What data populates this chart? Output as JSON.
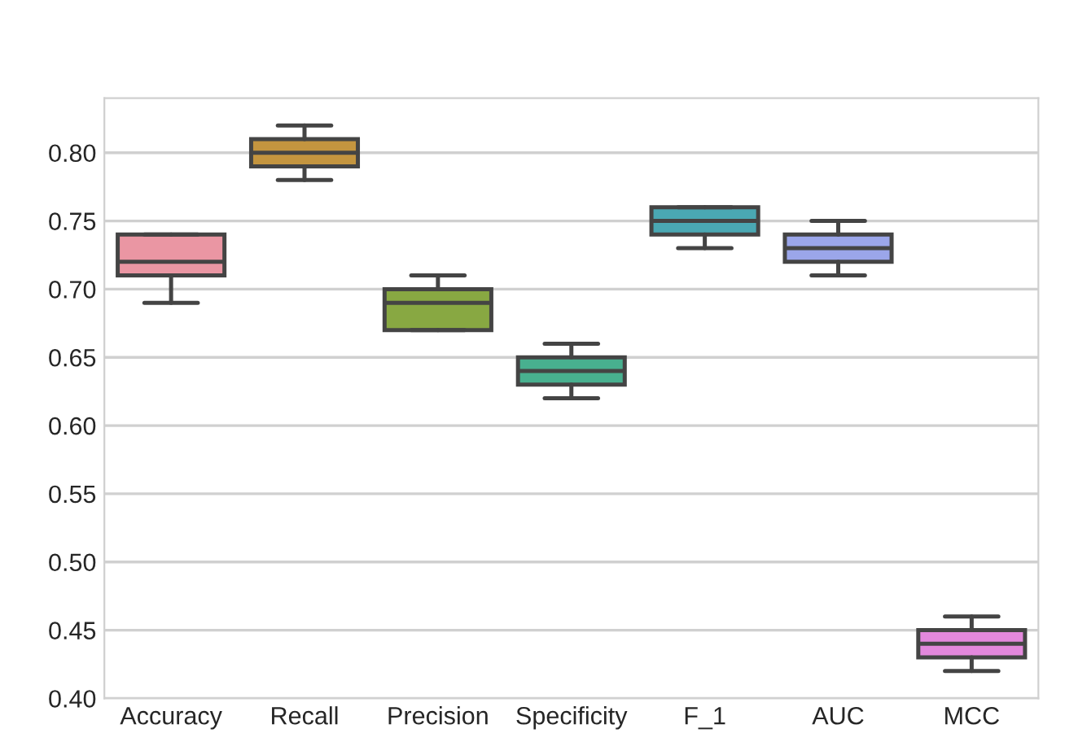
{
  "chart_data": {
    "type": "box",
    "categories": [
      "Accuracy",
      "Recall",
      "Precision",
      "Specificity",
      "F_1",
      "AUC",
      "MCC"
    ],
    "boxes": [
      {
        "low": 0.69,
        "q1": 0.71,
        "median": 0.72,
        "q3": 0.74,
        "high": 0.74
      },
      {
        "low": 0.78,
        "q1": 0.79,
        "median": 0.8,
        "q3": 0.81,
        "high": 0.82
      },
      {
        "low": 0.67,
        "q1": 0.67,
        "median": 0.69,
        "q3": 0.7,
        "high": 0.71
      },
      {
        "low": 0.62,
        "q1": 0.63,
        "median": 0.64,
        "q3": 0.65,
        "high": 0.66
      },
      {
        "low": 0.73,
        "q1": 0.74,
        "median": 0.75,
        "q3": 0.76,
        "high": 0.76
      },
      {
        "low": 0.71,
        "q1": 0.72,
        "median": 0.73,
        "q3": 0.74,
        "high": 0.75
      },
      {
        "low": 0.42,
        "q1": 0.43,
        "median": 0.44,
        "q3": 0.45,
        "high": 0.46
      }
    ],
    "colors": [
      "#ea96a3",
      "#c4953f",
      "#88a842",
      "#48b08f",
      "#4aa8b3",
      "#9ba6ea",
      "#e388dc"
    ],
    "ylim": [
      0.4,
      0.84
    ],
    "yticks": [
      {
        "value": 0.4,
        "label": "0.40"
      },
      {
        "value": 0.45,
        "label": "0.45"
      },
      {
        "value": 0.5,
        "label": "0.50"
      },
      {
        "value": 0.55,
        "label": "0.55"
      },
      {
        "value": 0.6,
        "label": "0.60"
      },
      {
        "value": 0.65,
        "label": "0.65"
      },
      {
        "value": 0.7,
        "label": "0.70"
      },
      {
        "value": 0.75,
        "label": "0.75"
      },
      {
        "value": 0.8,
        "label": "0.80"
      }
    ],
    "grid": "y"
  }
}
